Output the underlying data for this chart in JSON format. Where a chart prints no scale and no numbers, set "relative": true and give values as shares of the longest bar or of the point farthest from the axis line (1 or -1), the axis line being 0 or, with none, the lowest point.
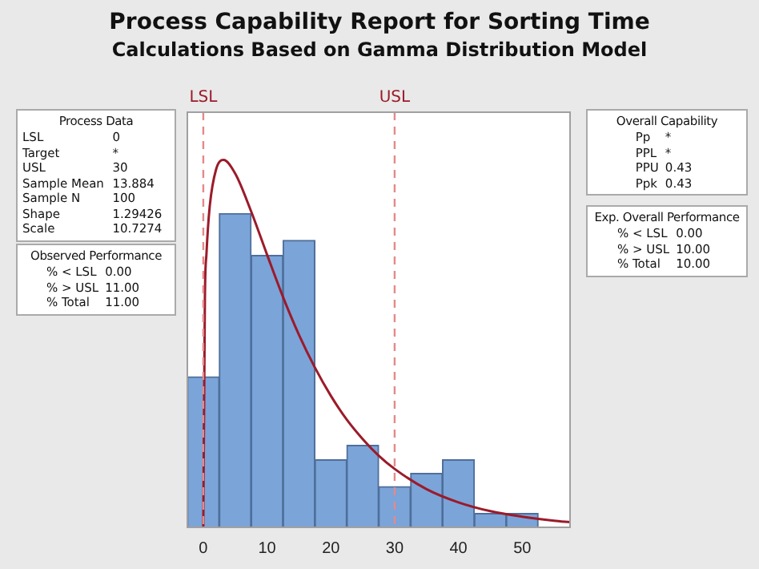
{
  "chart_data": {
    "type": "histogram",
    "title": "Process Capability Report for Sorting Time",
    "subtitle": "Calculations Based on Gamma Distribution Model",
    "relative": true,
    "bins": [
      -2.5,
      2.5,
      7.5,
      12.5,
      17.5,
      22.5,
      27.5,
      32.5,
      37.5,
      42.5,
      47.5,
      52.5
    ],
    "values": [
      0.41,
      0.854,
      0.74,
      0.781,
      0.184,
      0.223,
      0.111,
      0.147,
      0.184,
      0.038,
      0.038
    ],
    "color": "#7ba4d9",
    "series": [
      {
        "type": "line",
        "x": [
          0,
          0.25,
          0.5,
          1,
          2,
          3.16,
          5,
          7.5,
          10,
          12.5,
          15,
          17.5,
          20,
          22.5,
          25,
          27.5,
          30,
          35,
          40,
          45,
          50,
          55,
          57.5
        ],
        "values": [
          0,
          0.622,
          0.745,
          0.872,
          0.974,
          1,
          0.963,
          0.86,
          0.742,
          0.627,
          0.524,
          0.435,
          0.358,
          0.293,
          0.24,
          0.195,
          0.159,
          0.104,
          0.068,
          0.044,
          0.029,
          0.018,
          0.014
        ],
        "color": "#9b1b2a"
      }
    ],
    "xlim": [
      -2.5,
      57.5
    ],
    "xticks": [
      0,
      10,
      20,
      30,
      40,
      50
    ],
    "grid": false,
    "legend": false,
    "tick_labels": "x",
    "ref_lines": [
      {
        "axis": "x",
        "value": 0,
        "label": "LSL",
        "color": "#e38a8a",
        "line_style": "dashed"
      },
      {
        "axis": "x",
        "value": 30,
        "label": "USL",
        "color": "#e38a8a",
        "line_style": "dashed"
      }
    ],
    "annotations": [
      "Process Data\nLSL\t0\nTarget\t*\nUSL\t30\nSample Mean\t13.884\nSample N\t100\nShape\t1.29426\nScale\t10.7274",
      "Observed Performance\n% < LSL\t0.00\n% > USL\t11.00\n% Total\t11.00",
      "Overall Capability\nPp\t*\nPPL\t*\nPPU\t0.43\nPpk\t0.43",
      "Exp. Overall Performance\n% < LSL\t0.00\n% > USL\t10.00\n% Total\t10.00"
    ]
  }
}
